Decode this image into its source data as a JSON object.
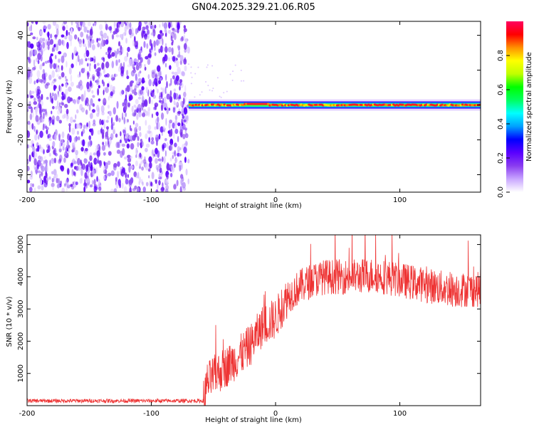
{
  "title": "GN04.2025.329.21.06.R05",
  "chart_data": [
    {
      "type": "heatmap",
      "panel": "spectrogram",
      "xlabel": "Height of straight line (km)",
      "ylabel": "Frequency (Hz)",
      "xlim": [
        -200,
        165
      ],
      "ylim": [
        -50,
        48
      ],
      "xticks": [
        -200,
        -100,
        0,
        100
      ],
      "xtick_labels": [
        "-200",
        "-100",
        "0",
        "100"
      ],
      "yticks": [
        -40,
        -20,
        0,
        20,
        40
      ],
      "ytick_labels": [
        "-40",
        "-20",
        "0",
        "20",
        "40"
      ],
      "noise_region_x": [
        -200,
        -70
      ],
      "signal_start_x": -70,
      "signal_frequency_hz": 0,
      "colorbar": {
        "label": "Normalized spectral amplitude",
        "range": [
          0,
          1
        ],
        "ticks": [
          0,
          0.2,
          0.4,
          0.6,
          0.8
        ],
        "tick_labels": [
          "0.0",
          "0.2",
          "0.4",
          "0.6",
          "0.8"
        ],
        "colors": [
          "#ffffff",
          "#c9a6ff",
          "#8a3df0",
          "#5a00ff",
          "#0000ff",
          "#00a0ff",
          "#00ffff",
          "#00ff60",
          "#00ff00",
          "#c0ff00",
          "#ffff00",
          "#ff9000",
          "#ff0000",
          "#ff0060"
        ]
      }
    },
    {
      "type": "line",
      "panel": "snr",
      "xlabel": "Height of straight line (km)",
      "ylabel": "SNR (10 * v/v)",
      "xlim": [
        -200,
        165
      ],
      "ylim": [
        0,
        5300
      ],
      "xticks": [
        -200,
        -100,
        0,
        100
      ],
      "xtick_labels": [
        "-200",
        "-100",
        "0",
        "100"
      ],
      "yticks": [
        1000,
        2000,
        3000,
        4000,
        5000
      ],
      "ytick_labels": [
        "1000",
        "2000",
        "3000",
        "4000",
        "5000"
      ],
      "color": "#ee3333",
      "series": [
        {
          "name": "SNR trend",
          "x": [
            -200,
            -58,
            -55,
            -50,
            -40,
            -30,
            -20,
            -10,
            0,
            10,
            20,
            30,
            40,
            60,
            80,
            100,
            120,
            140,
            165
          ],
          "values": [
            150,
            150,
            700,
            900,
            1200,
            1500,
            1900,
            2500,
            2700,
            3400,
            3700,
            3900,
            4000,
            4000,
            4050,
            3900,
            3750,
            3600,
            3600
          ]
        }
      ]
    }
  ]
}
